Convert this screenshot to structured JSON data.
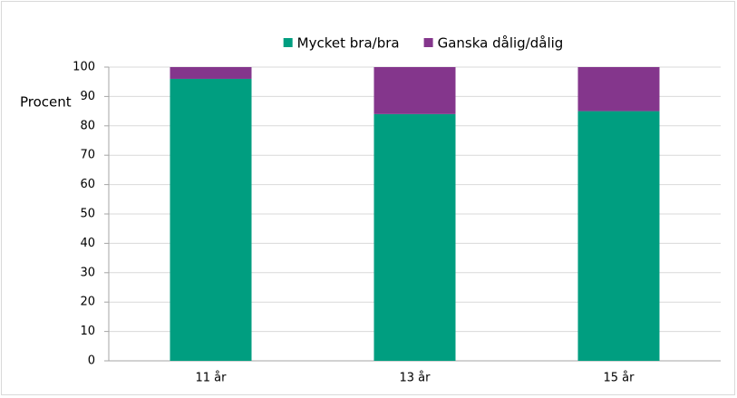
{
  "chart_data": {
    "type": "stacked_bar",
    "y_label": "Procent",
    "categories": [
      "11 år",
      "13 år",
      "15 år"
    ],
    "series": [
      {
        "name": "Mycket bra/bra",
        "color": "#009e80",
        "values": [
          96,
          84,
          85
        ]
      },
      {
        "name": "Ganska dålig/dålig",
        "color": "#84368c",
        "values": [
          4,
          16,
          15
        ]
      }
    ],
    "ylim": [
      0,
      100
    ],
    "yticks": [
      0,
      10,
      20,
      30,
      40,
      50,
      60,
      70,
      80,
      90,
      100
    ],
    "grid": true,
    "legend": "top"
  }
}
